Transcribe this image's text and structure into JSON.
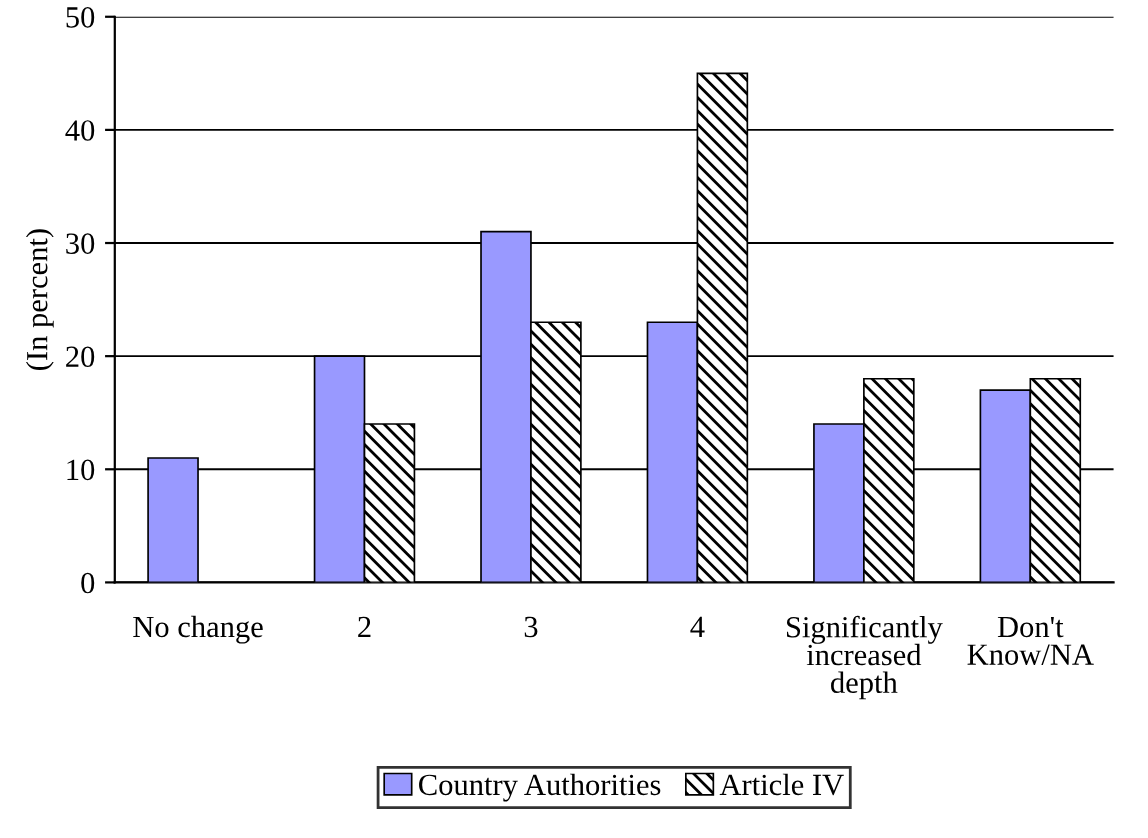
{
  "chart_data": {
    "type": "bar",
    "ylabel": "(In percent)",
    "categories": [
      "No change",
      "2",
      "3",
      "4",
      "Significantly\nincreased\ndepth",
      "Don't\nKnow/NA"
    ],
    "series": [
      {
        "name": "Country Authorities",
        "color": "#9999ff",
        "values": [
          11,
          20,
          31,
          23,
          14,
          17
        ]
      },
      {
        "name": "Article IV",
        "color": "#000000",
        "values": [
          null,
          14,
          23,
          45,
          18,
          18
        ]
      }
    ],
    "ylim": [
      0,
      50
    ],
    "yticks": [
      0,
      10,
      20,
      30,
      40,
      50
    ],
    "grid": "y",
    "legend": "bottom"
  }
}
